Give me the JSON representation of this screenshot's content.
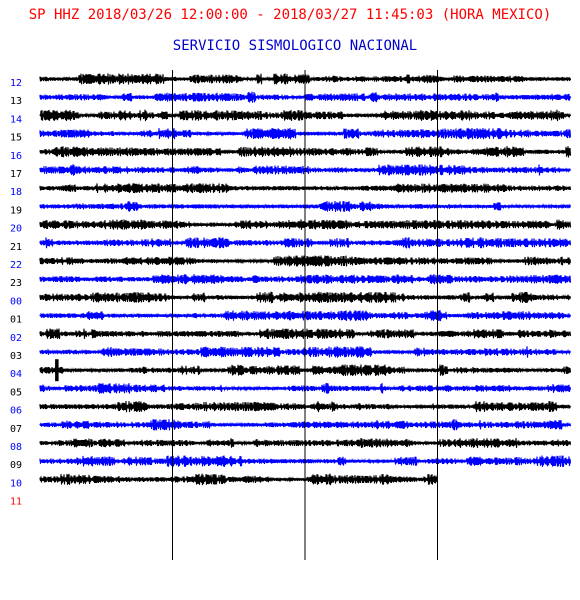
{
  "chart_data": {
    "type": "line",
    "title": "SP HHZ 2018/03/26 12:00:00 - 2018/03/27 11:45:03 (HORA MEXICO)",
    "subtitle": "SERVICIO SISMOLOGICO NACIONAL",
    "hour_labels": [
      "12",
      "13",
      "14",
      "15",
      "16",
      "17",
      "18",
      "19",
      "20",
      "21",
      "22",
      "23",
      "00",
      "01",
      "02",
      "03",
      "04",
      "05",
      "06",
      "07",
      "08",
      "09",
      "10",
      "11"
    ],
    "minutes_per_line": 60,
    "vertical_marks_minutes": [
      15,
      30,
      45
    ],
    "last_trace_end_minute": 45,
    "event": {
      "hour": "04",
      "minute": 1
    },
    "colors": {
      "title": "#ff0000",
      "subtitle": "#0000cc",
      "trace_dark": "#000000",
      "trace_blue": "#0000ff",
      "label_blue": "#0000ff",
      "label_dark": "#000000",
      "label_last": "#ff0000"
    }
  }
}
